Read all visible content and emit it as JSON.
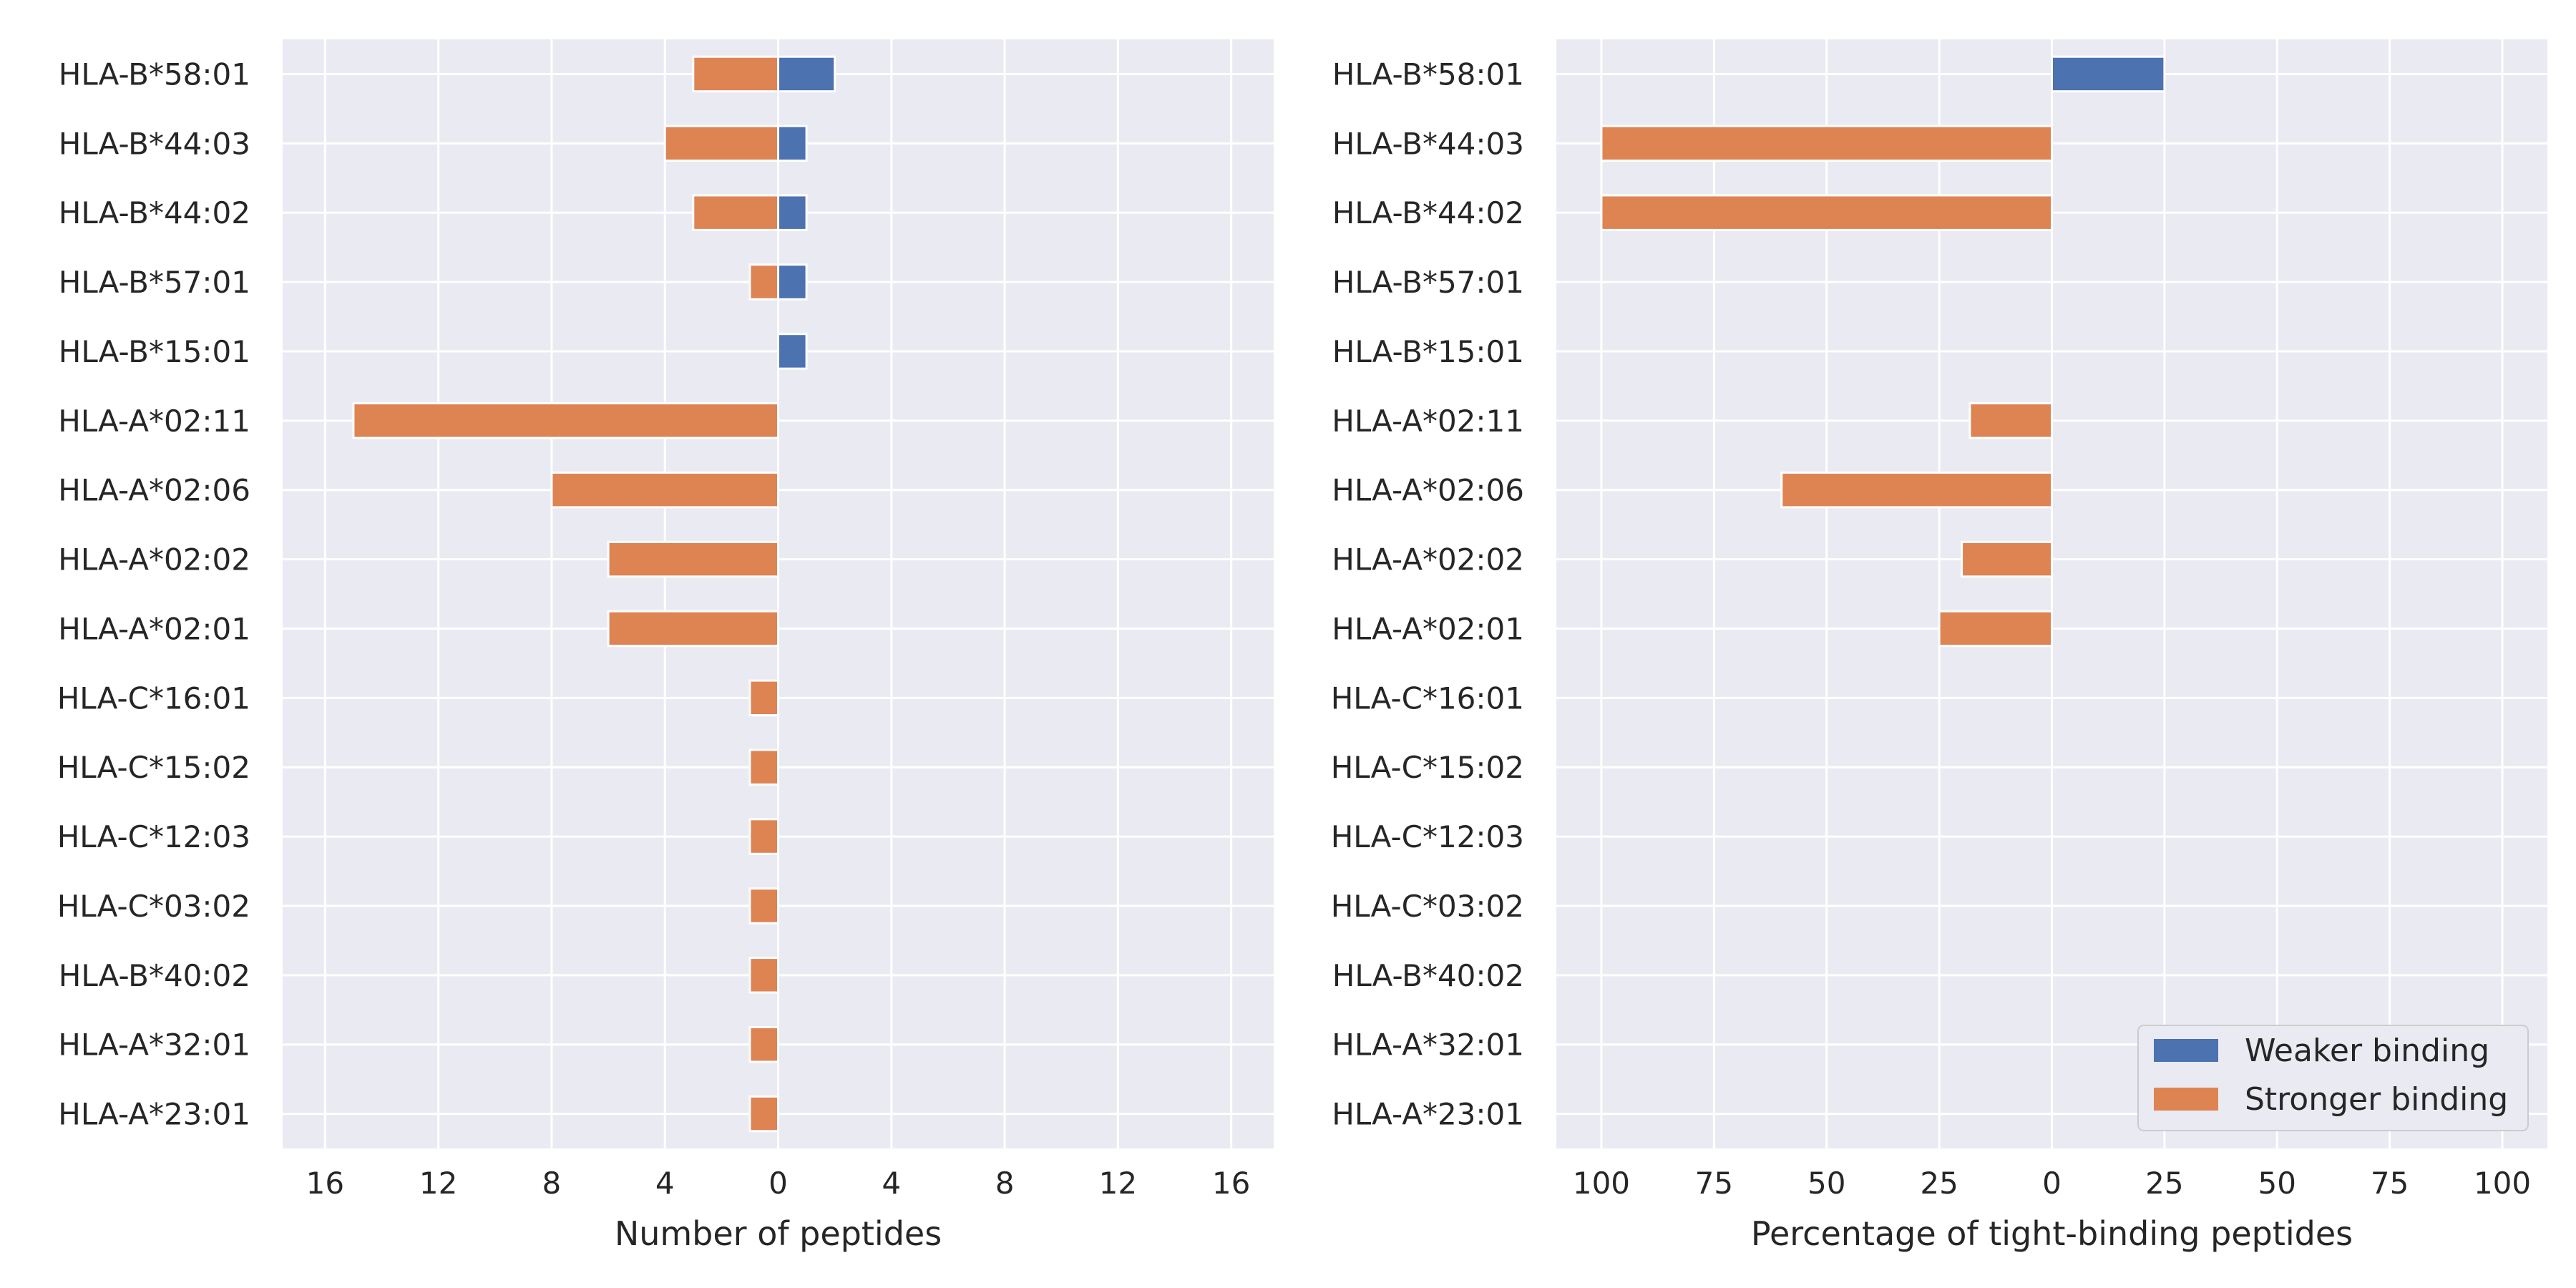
{
  "chart_data": [
    {
      "type": "bar",
      "orientation": "horizontal",
      "xlabel": "Number of peptides",
      "ylabel": "",
      "xlim": [
        -17.5,
        17.5
      ],
      "x_axis_note": "tick labels show absolute values; Stronger binding plotted to the left of 0, Weaker binding to the right",
      "xticks": [
        -16,
        -12,
        -8,
        -4,
        0,
        4,
        8,
        12,
        16
      ],
      "xtick_labels": [
        "16",
        "12",
        "8",
        "4",
        "0",
        "4",
        "8",
        "12",
        "16"
      ],
      "grid": true,
      "categories": [
        "HLA-B*58:01",
        "HLA-B*44:03",
        "HLA-B*44:02",
        "HLA-B*57:01",
        "HLA-B*15:01",
        "HLA-A*02:11",
        "HLA-A*02:06",
        "HLA-A*02:02",
        "HLA-A*02:01",
        "HLA-C*16:01",
        "HLA-C*15:02",
        "HLA-C*12:03",
        "HLA-C*03:02",
        "HLA-B*40:02",
        "HLA-A*32:01",
        "HLA-A*23:01"
      ],
      "series": [
        {
          "name": "Weaker binding",
          "color": "#4c72b0",
          "values": [
            2,
            1,
            1,
            1,
            1,
            0,
            0,
            0,
            0,
            0,
            0,
            0,
            0,
            0,
            0,
            0
          ]
        },
        {
          "name": "Stronger binding",
          "color": "#dd8452",
          "values": [
            -3,
            -4,
            -3,
            -1,
            0,
            -15,
            -8,
            -6,
            -6,
            -1,
            -1,
            -1,
            -1,
            -1,
            -1,
            -1
          ]
        }
      ]
    },
    {
      "type": "bar",
      "orientation": "horizontal",
      "xlabel": "Percentage of tight-binding peptides",
      "ylabel": "",
      "xlim": [
        -110,
        110
      ],
      "x_axis_note": "tick labels show absolute values; Stronger binding plotted to the left of 0, Weaker binding to the right",
      "xticks": [
        -100,
        -75,
        -50,
        -25,
        0,
        25,
        50,
        75,
        100
      ],
      "xtick_labels": [
        "100",
        "75",
        "50",
        "25",
        "0",
        "25",
        "50",
        "75",
        "100"
      ],
      "grid": true,
      "legend_position": "lower right",
      "categories": [
        "HLA-B*58:01",
        "HLA-B*44:03",
        "HLA-B*44:02",
        "HLA-B*57:01",
        "HLA-B*15:01",
        "HLA-A*02:11",
        "HLA-A*02:06",
        "HLA-A*02:02",
        "HLA-A*02:01",
        "HLA-C*16:01",
        "HLA-C*15:02",
        "HLA-C*12:03",
        "HLA-C*03:02",
        "HLA-B*40:02",
        "HLA-A*32:01",
        "HLA-A*23:01"
      ],
      "series": [
        {
          "name": "Weaker binding",
          "color": "#4c72b0",
          "values": [
            25,
            0,
            0,
            0,
            0,
            0,
            0,
            0,
            0,
            0,
            0,
            0,
            0,
            0,
            0,
            0
          ]
        },
        {
          "name": "Stronger binding",
          "color": "#dd8452",
          "values": [
            0,
            -100,
            -100,
            0,
            0,
            -18.2,
            -60,
            -20,
            -25,
            0,
            0,
            0,
            0,
            0,
            0,
            0
          ]
        }
      ]
    }
  ],
  "legend": {
    "items": [
      {
        "label": "Weaker binding",
        "color": "#4c72b0"
      },
      {
        "label": "Stronger binding",
        "color": "#dd8452"
      }
    ]
  },
  "style": {
    "plot_background": "#eaeaf2",
    "grid_color": "#ffffff",
    "bar_edge_color": "#ffffff"
  }
}
